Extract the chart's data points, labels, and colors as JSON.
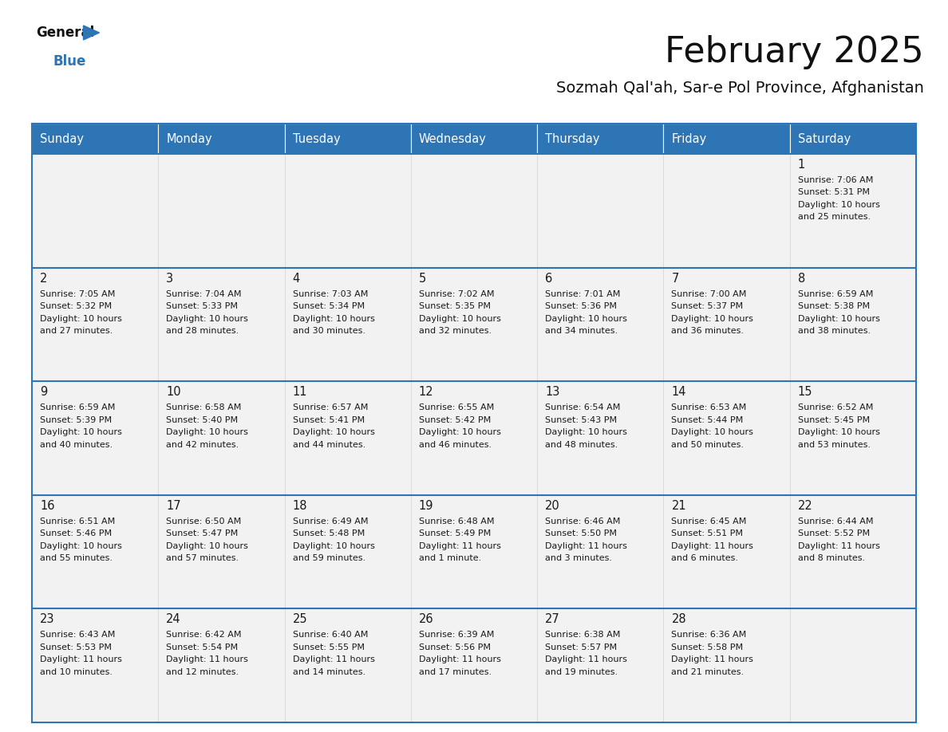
{
  "title": "February 2025",
  "subtitle": "Sozmah Qal'ah, Sar-e Pol Province, Afghanistan",
  "days_of_week": [
    "Sunday",
    "Monday",
    "Tuesday",
    "Wednesday",
    "Thursday",
    "Friday",
    "Saturday"
  ],
  "header_bg": "#2E75B6",
  "header_text": "#FFFFFF",
  "cell_bg": "#F2F2F2",
  "text_color": "#1a1a1a",
  "line_color": "#2E75B6",
  "calendar_data": [
    [
      null,
      null,
      null,
      null,
      null,
      null,
      {
        "day": 1,
        "sunrise": "7:06 AM",
        "sunset": "5:31 PM",
        "daylight_line1": "10 hours",
        "daylight_line2": "and 25 minutes."
      }
    ],
    [
      {
        "day": 2,
        "sunrise": "7:05 AM",
        "sunset": "5:32 PM",
        "daylight_line1": "10 hours",
        "daylight_line2": "and 27 minutes."
      },
      {
        "day": 3,
        "sunrise": "7:04 AM",
        "sunset": "5:33 PM",
        "daylight_line1": "10 hours",
        "daylight_line2": "and 28 minutes."
      },
      {
        "day": 4,
        "sunrise": "7:03 AM",
        "sunset": "5:34 PM",
        "daylight_line1": "10 hours",
        "daylight_line2": "and 30 minutes."
      },
      {
        "day": 5,
        "sunrise": "7:02 AM",
        "sunset": "5:35 PM",
        "daylight_line1": "10 hours",
        "daylight_line2": "and 32 minutes."
      },
      {
        "day": 6,
        "sunrise": "7:01 AM",
        "sunset": "5:36 PM",
        "daylight_line1": "10 hours",
        "daylight_line2": "and 34 minutes."
      },
      {
        "day": 7,
        "sunrise": "7:00 AM",
        "sunset": "5:37 PM",
        "daylight_line1": "10 hours",
        "daylight_line2": "and 36 minutes."
      },
      {
        "day": 8,
        "sunrise": "6:59 AM",
        "sunset": "5:38 PM",
        "daylight_line1": "10 hours",
        "daylight_line2": "and 38 minutes."
      }
    ],
    [
      {
        "day": 9,
        "sunrise": "6:59 AM",
        "sunset": "5:39 PM",
        "daylight_line1": "10 hours",
        "daylight_line2": "and 40 minutes."
      },
      {
        "day": 10,
        "sunrise": "6:58 AM",
        "sunset": "5:40 PM",
        "daylight_line1": "10 hours",
        "daylight_line2": "and 42 minutes."
      },
      {
        "day": 11,
        "sunrise": "6:57 AM",
        "sunset": "5:41 PM",
        "daylight_line1": "10 hours",
        "daylight_line2": "and 44 minutes."
      },
      {
        "day": 12,
        "sunrise": "6:55 AM",
        "sunset": "5:42 PM",
        "daylight_line1": "10 hours",
        "daylight_line2": "and 46 minutes."
      },
      {
        "day": 13,
        "sunrise": "6:54 AM",
        "sunset": "5:43 PM",
        "daylight_line1": "10 hours",
        "daylight_line2": "and 48 minutes."
      },
      {
        "day": 14,
        "sunrise": "6:53 AM",
        "sunset": "5:44 PM",
        "daylight_line1": "10 hours",
        "daylight_line2": "and 50 minutes."
      },
      {
        "day": 15,
        "sunrise": "6:52 AM",
        "sunset": "5:45 PM",
        "daylight_line1": "10 hours",
        "daylight_line2": "and 53 minutes."
      }
    ],
    [
      {
        "day": 16,
        "sunrise": "6:51 AM",
        "sunset": "5:46 PM",
        "daylight_line1": "10 hours",
        "daylight_line2": "and 55 minutes."
      },
      {
        "day": 17,
        "sunrise": "6:50 AM",
        "sunset": "5:47 PM",
        "daylight_line1": "10 hours",
        "daylight_line2": "and 57 minutes."
      },
      {
        "day": 18,
        "sunrise": "6:49 AM",
        "sunset": "5:48 PM",
        "daylight_line1": "10 hours",
        "daylight_line2": "and 59 minutes."
      },
      {
        "day": 19,
        "sunrise": "6:48 AM",
        "sunset": "5:49 PM",
        "daylight_line1": "11 hours",
        "daylight_line2": "and 1 minute."
      },
      {
        "day": 20,
        "sunrise": "6:46 AM",
        "sunset": "5:50 PM",
        "daylight_line1": "11 hours",
        "daylight_line2": "and 3 minutes."
      },
      {
        "day": 21,
        "sunrise": "6:45 AM",
        "sunset": "5:51 PM",
        "daylight_line1": "11 hours",
        "daylight_line2": "and 6 minutes."
      },
      {
        "day": 22,
        "sunrise": "6:44 AM",
        "sunset": "5:52 PM",
        "daylight_line1": "11 hours",
        "daylight_line2": "and 8 minutes."
      }
    ],
    [
      {
        "day": 23,
        "sunrise": "6:43 AM",
        "sunset": "5:53 PM",
        "daylight_line1": "11 hours",
        "daylight_line2": "and 10 minutes."
      },
      {
        "day": 24,
        "sunrise": "6:42 AM",
        "sunset": "5:54 PM",
        "daylight_line1": "11 hours",
        "daylight_line2": "and 12 minutes."
      },
      {
        "day": 25,
        "sunrise": "6:40 AM",
        "sunset": "5:55 PM",
        "daylight_line1": "11 hours",
        "daylight_line2": "and 14 minutes."
      },
      {
        "day": 26,
        "sunrise": "6:39 AM",
        "sunset": "5:56 PM",
        "daylight_line1": "11 hours",
        "daylight_line2": "and 17 minutes."
      },
      {
        "day": 27,
        "sunrise": "6:38 AM",
        "sunset": "5:57 PM",
        "daylight_line1": "11 hours",
        "daylight_line2": "and 19 minutes."
      },
      {
        "day": 28,
        "sunrise": "6:36 AM",
        "sunset": "5:58 PM",
        "daylight_line1": "11 hours",
        "daylight_line2": "and 21 minutes."
      },
      null
    ]
  ]
}
